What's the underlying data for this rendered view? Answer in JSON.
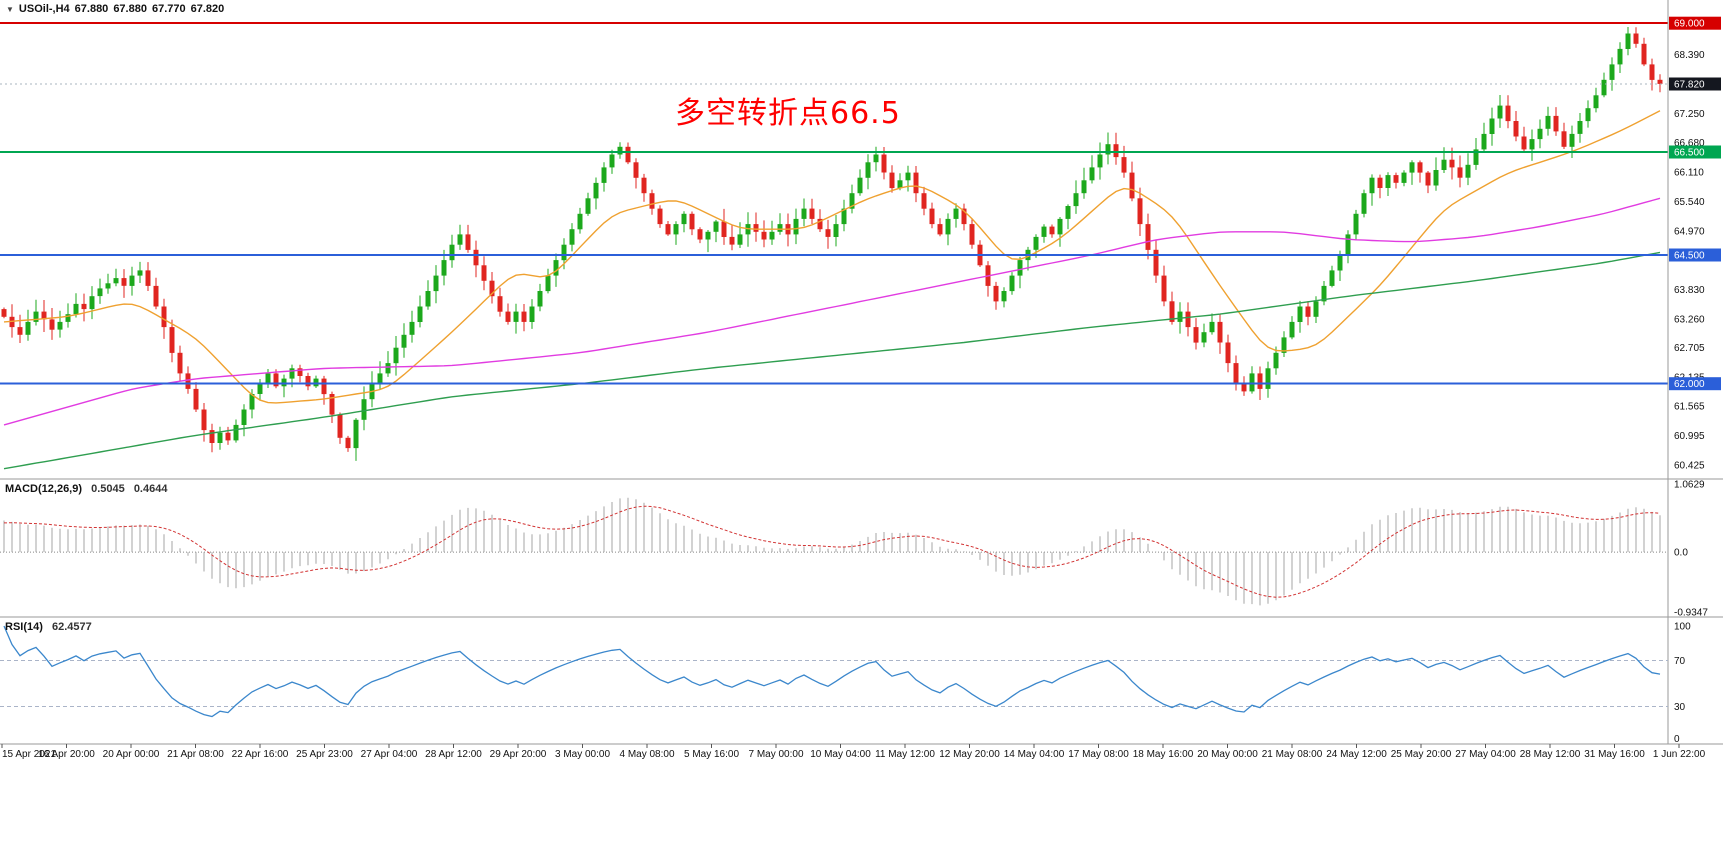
{
  "window": {
    "symbol_bar": {
      "symbol": "USOil-,H4",
      "ohlc": [
        "67.880",
        "67.880",
        "67.770",
        "67.820"
      ]
    }
  },
  "annotation": {
    "text": "多空转折点66.5",
    "color": "#fe0000"
  },
  "chart_data": {
    "type": "candlestick",
    "symbol": "USOil",
    "timeframe": "H4",
    "title": "USOil-,H4 67.880 67.880 67.770 67.820",
    "current_price": 67.82,
    "price_axis": {
      "range": [
        60.17,
        69.45
      ],
      "ticks": [
        {
          "price": 68.39,
          "label": "68.390"
        },
        {
          "price": 67.25,
          "label": "67.250"
        },
        {
          "price": 66.68,
          "label": "66.680"
        },
        {
          "price": 66.11,
          "label": "66.110"
        },
        {
          "price": 65.54,
          "label": "65.540"
        },
        {
          "price": 64.97,
          "label": "64.970"
        },
        {
          "price": 63.83,
          "label": "63.830"
        },
        {
          "price": 63.26,
          "label": "63.260"
        },
        {
          "price": 62.705,
          "label": "62.705"
        },
        {
          "price": 62.135,
          "label": "62.135"
        },
        {
          "price": 61.565,
          "label": "61.565"
        },
        {
          "price": 60.995,
          "label": "60.995"
        },
        {
          "price": 60.425,
          "label": "60.425"
        }
      ],
      "badges": [
        {
          "price": 69.0,
          "label": "69.000",
          "color": "#d60000"
        },
        {
          "price": 67.82,
          "label": "67.820",
          "color": "#14171f"
        },
        {
          "price": 66.5,
          "label": "66.500",
          "color": "#00a651"
        },
        {
          "price": 64.5,
          "label": "64.500",
          "color": "#2b5fd9"
        },
        {
          "price": 62.0,
          "label": "62.000",
          "color": "#2b5fd9"
        }
      ]
    },
    "horizontal_lines": [
      {
        "price": 69.0,
        "color": "#d60000",
        "width": 2
      },
      {
        "price": 66.5,
        "color": "#00a651",
        "width": 2
      },
      {
        "price": 64.5,
        "color": "#2b5fd9",
        "width": 2
      },
      {
        "price": 62.0,
        "color": "#2b5fd9",
        "width": 2
      }
    ],
    "candle_colors": {
      "up": "#1ca81c",
      "down": "#e02520"
    },
    "candles": {
      "first_open": 63.45,
      "closes": [
        63.3,
        63.1,
        62.95,
        63.2,
        63.4,
        63.25,
        63.05,
        63.2,
        63.35,
        63.55,
        63.45,
        63.7,
        63.85,
        63.95,
        64.05,
        63.9,
        64.1,
        64.2,
        63.9,
        63.5,
        63.1,
        62.6,
        62.2,
        61.9,
        61.5,
        61.1,
        60.85,
        61.05,
        60.9,
        61.2,
        61.5,
        61.8,
        62.0,
        62.2,
        61.95,
        62.1,
        62.3,
        62.15,
        61.95,
        62.1,
        61.8,
        61.4,
        60.95,
        60.75,
        61.3,
        61.7,
        62.0,
        62.2,
        62.4,
        62.7,
        62.95,
        63.2,
        63.5,
        63.8,
        64.1,
        64.4,
        64.7,
        64.9,
        64.6,
        64.3,
        64.0,
        63.7,
        63.4,
        63.2,
        63.4,
        63.2,
        63.5,
        63.8,
        64.1,
        64.4,
        64.7,
        65.0,
        65.3,
        65.6,
        65.9,
        66.2,
        66.45,
        66.6,
        66.3,
        66.0,
        65.7,
        65.4,
        65.1,
        64.9,
        65.1,
        65.3,
        65.0,
        64.8,
        64.95,
        65.15,
        64.85,
        64.7,
        64.9,
        65.1,
        64.95,
        64.8,
        64.95,
        65.1,
        64.9,
        65.2,
        65.4,
        65.2,
        65.0,
        64.85,
        65.1,
        65.4,
        65.7,
        66.0,
        66.3,
        66.45,
        66.1,
        65.8,
        65.95,
        66.1,
        65.7,
        65.4,
        65.1,
        64.9,
        65.2,
        65.4,
        65.1,
        64.7,
        64.3,
        63.9,
        63.6,
        63.8,
        64.1,
        64.4,
        64.6,
        64.85,
        65.05,
        64.9,
        65.2,
        65.45,
        65.7,
        65.95,
        66.2,
        66.45,
        66.65,
        66.4,
        66.1,
        65.6,
        65.1,
        64.6,
        64.1,
        63.6,
        63.2,
        63.4,
        63.1,
        62.8,
        63.0,
        63.2,
        62.8,
        62.4,
        62.0,
        61.85,
        62.2,
        61.9,
        62.3,
        62.6,
        62.9,
        63.2,
        63.5,
        63.3,
        63.6,
        63.9,
        64.2,
        64.5,
        64.9,
        65.3,
        65.7,
        66.0,
        65.8,
        66.05,
        65.9,
        66.1,
        66.3,
        66.1,
        65.85,
        66.15,
        66.35,
        66.2,
        66.0,
        66.25,
        66.55,
        66.85,
        67.15,
        67.4,
        67.1,
        66.8,
        66.55,
        66.75,
        66.95,
        67.2,
        66.9,
        66.6,
        66.85,
        67.1,
        67.35,
        67.6,
        67.9,
        68.2,
        68.5,
        68.8,
        68.6,
        68.2,
        67.9,
        67.82
      ]
    },
    "moving_averages": [
      {
        "name": "ma-fast-orange",
        "color": "#efa130",
        "points": [
          [
            0,
            63.2
          ],
          [
            8,
            63.3
          ],
          [
            16,
            63.6
          ],
          [
            24,
            62.9
          ],
          [
            32,
            61.6
          ],
          [
            40,
            61.7
          ],
          [
            48,
            61.9
          ],
          [
            56,
            63.0
          ],
          [
            64,
            64.2
          ],
          [
            68,
            64.0
          ],
          [
            76,
            65.3
          ],
          [
            84,
            65.6
          ],
          [
            92,
            65.0
          ],
          [
            100,
            65.0
          ],
          [
            108,
            65.6
          ],
          [
            114,
            65.9
          ],
          [
            120,
            65.4
          ],
          [
            126,
            64.3
          ],
          [
            132,
            64.8
          ],
          [
            140,
            65.9
          ],
          [
            146,
            65.3
          ],
          [
            152,
            63.9
          ],
          [
            158,
            62.6
          ],
          [
            164,
            62.7
          ],
          [
            172,
            63.9
          ],
          [
            180,
            65.4
          ],
          [
            188,
            66.1
          ],
          [
            196,
            66.5
          ],
          [
            202,
            66.9
          ],
          [
            207,
            67.3
          ]
        ]
      },
      {
        "name": "ma-mid-magenta",
        "color": "#e13ce1",
        "points": [
          [
            0,
            61.2
          ],
          [
            16,
            61.9
          ],
          [
            24,
            62.1
          ],
          [
            40,
            62.3
          ],
          [
            56,
            62.35
          ],
          [
            72,
            62.6
          ],
          [
            88,
            63.0
          ],
          [
            104,
            63.5
          ],
          [
            120,
            64.0
          ],
          [
            136,
            64.5
          ],
          [
            144,
            64.8
          ],
          [
            152,
            64.95
          ],
          [
            160,
            64.95
          ],
          [
            168,
            64.8
          ],
          [
            176,
            64.75
          ],
          [
            184,
            64.85
          ],
          [
            192,
            65.05
          ],
          [
            200,
            65.3
          ],
          [
            207,
            65.6
          ]
        ]
      },
      {
        "name": "ma-slow-green",
        "color": "#2f9e50",
        "points": [
          [
            0,
            60.35
          ],
          [
            24,
            61.0
          ],
          [
            40,
            61.35
          ],
          [
            56,
            61.75
          ],
          [
            72,
            62.0
          ],
          [
            88,
            62.3
          ],
          [
            104,
            62.55
          ],
          [
            120,
            62.8
          ],
          [
            136,
            63.1
          ],
          [
            152,
            63.35
          ],
          [
            168,
            63.7
          ],
          [
            184,
            64.0
          ],
          [
            200,
            64.35
          ],
          [
            207,
            64.55
          ]
        ]
      }
    ],
    "macd": {
      "label": "MACD(12,26,9)",
      "value_main": "0.5045",
      "value_signal": "0.4644",
      "params": [
        12,
        26,
        9
      ],
      "axis_ticks": [
        1.0629,
        0.0,
        -0.9347
      ],
      "axis_labels": [
        "1.0629",
        "0.0",
        "-0.9347"
      ],
      "histogram_color": "#a6a6a6",
      "signal_color": "#d23333"
    },
    "rsi": {
      "label": "RSI(14)",
      "value": "62.4577",
      "period": 14,
      "levels": [
        70,
        30
      ],
      "axis_labels": [
        "100",
        "70",
        "30",
        "0"
      ],
      "line_color": "#3b87cc"
    },
    "time_labels": [
      "15 Apr 2021",
      "16 Apr 20:00",
      "20 Apr 00:00",
      "21 Apr 08:00",
      "22 Apr 16:00",
      "25 Apr 23:00",
      "27 Apr 04:00",
      "28 Apr 12:00",
      "29 Apr 20:00",
      "3 May 00:00",
      "4 May 08:00",
      "5 May 16:00",
      "7 May 00:00",
      "10 May 04:00",
      "11 May 12:00",
      "12 May 20:00",
      "14 May 04:00",
      "17 May 08:00",
      "18 May 16:00",
      "20 May 00:00",
      "21 May 08:00",
      "24 May 12:00",
      "25 May 20:00",
      "27 May 04:00",
      "28 May 12:00",
      "31 May 16:00",
      "1 Jun 22:00"
    ]
  }
}
